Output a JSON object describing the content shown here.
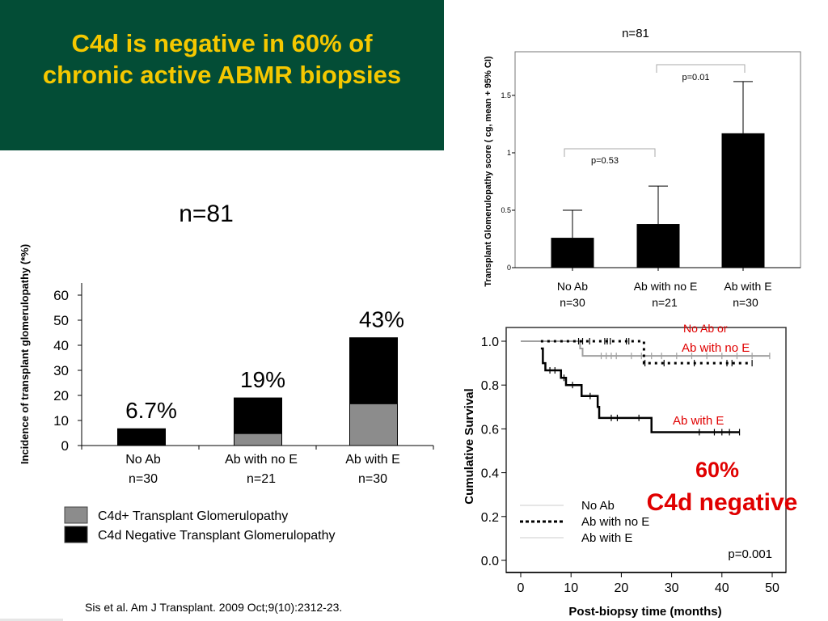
{
  "slide": {
    "title_line1": "C4d is negative in 60% of",
    "title_line2": "chronic active ABMR biopsies",
    "citation": "Sis et al. Am J Transplant. 2009 Oct;9(10):2312-23.",
    "colors": {
      "title_bg": "#034d36",
      "title_text": "#f5c800",
      "highlight_red": "#e00000"
    }
  },
  "chart_data": [
    {
      "id": "incidence",
      "type": "bar",
      "stacked": true,
      "title": "n=81",
      "xlabel": "",
      "ylabel": "Incidence of transplant glomerulopathy (*%)",
      "ylim": [
        0,
        60
      ],
      "yticks": [
        0,
        10,
        20,
        30,
        40,
        50,
        60
      ],
      "categories": [
        {
          "line1": "No Ab",
          "line2": "n=30"
        },
        {
          "line1": "Ab with no E",
          "line2": "n=21"
        },
        {
          "line1": "Ab with E",
          "line2": "n=30"
        }
      ],
      "series": [
        {
          "name": "C4d+ Transplant Glomerulopathy",
          "color": "#8c8c8c",
          "values": [
            0,
            4.8,
            16.7
          ]
        },
        {
          "name": "C4d Negative Transplant Glomerulopathy",
          "color": "#000000",
          "values": [
            6.7,
            14.2,
            26.3
          ]
        }
      ],
      "totals": [
        6.7,
        19,
        43
      ],
      "data_labels": [
        "6.7%",
        "19%",
        "43%"
      ],
      "legend_position": "bottom-left"
    },
    {
      "id": "tg-score",
      "type": "bar",
      "title": "n=81",
      "xlabel": "",
      "ylabel": "Transplant Glomerulopathy score ( cg, mean + 95% CI)",
      "ylim": [
        0,
        1.88
      ],
      "yticks": [
        0,
        0.5,
        1,
        1.5
      ],
      "ytick_labels": [
        "0",
        "0.5",
        "1",
        "1.5"
      ],
      "categories": [
        {
          "line1": "No Ab",
          "line2": "n=30"
        },
        {
          "line1": "Ab with no E",
          "line2": "n=21"
        },
        {
          "line1": "Ab with E",
          "line2": "n=30"
        }
      ],
      "values": [
        0.26,
        0.38,
        1.17
      ],
      "ci_upper": [
        0.5,
        0.71,
        1.62
      ],
      "comparisons": [
        {
          "from": 0,
          "to": 1,
          "label": "p=0.53"
        },
        {
          "from": 1,
          "to": 2,
          "label": "p=0.01"
        }
      ]
    },
    {
      "id": "survival",
      "type": "line",
      "subtype": "kaplan-meier",
      "xlabel": "Post-biopsy time (months)",
      "ylabel": "Cumulative Survival",
      "xlim": [
        -3,
        53
      ],
      "ylim": [
        -0.08,
        1.1
      ],
      "xticks": [
        0,
        10,
        20,
        30,
        40,
        50
      ],
      "yticks": [
        0.0,
        0.2,
        0.4,
        0.6,
        0.8,
        1.0
      ],
      "ytick_labels": [
        "0.0",
        "0.2",
        "0.4",
        "0.6",
        "0.8",
        "1.0"
      ],
      "series": [
        {
          "name": "No Ab",
          "color": "#a0a0a0",
          "style": "solid",
          "steps": [
            [
              0,
              1.0
            ],
            [
              11.8,
              1.0
            ],
            [
              11.8,
              0.967
            ],
            [
              12.3,
              0.967
            ],
            [
              12.3,
              0.933
            ],
            [
              49.5,
              0.933
            ]
          ],
          "censored": [
            [
              16,
              0.933
            ],
            [
              17,
              0.933
            ],
            [
              18,
              0.933
            ],
            [
              19,
              0.933
            ],
            [
              22,
              0.933
            ],
            [
              24,
              0.933
            ],
            [
              26,
              0.933
            ],
            [
              28,
              0.933
            ],
            [
              31,
              0.933
            ],
            [
              34,
              0.933
            ],
            [
              37,
              0.933
            ],
            [
              40,
              0.933
            ],
            [
              43,
              0.933
            ],
            [
              46,
              0.933
            ],
            [
              49.5,
              0.933
            ]
          ]
        },
        {
          "name": "Ab with no E",
          "color": "#000000",
          "style": "dotted",
          "steps": [
            [
              4,
              1.0
            ],
            [
              24.5,
              1.0
            ],
            [
              24.5,
              0.9
            ],
            [
              46,
              0.9
            ]
          ],
          "censored": [
            [
              11.5,
              1.0
            ],
            [
              12.3,
              1.0
            ],
            [
              13.7,
              1.0
            ],
            [
              16.7,
              1.0
            ],
            [
              17.2,
              1.0
            ],
            [
              17.8,
              1.0
            ],
            [
              21,
              1.0
            ],
            [
              21.5,
              1.0
            ],
            [
              24.7,
              0.9
            ],
            [
              28.5,
              0.9
            ],
            [
              34.5,
              0.9
            ],
            [
              41,
              0.9
            ],
            [
              42,
              0.9
            ],
            [
              46,
              0.9
            ]
          ]
        },
        {
          "name": "Ab with E",
          "color": "#000000",
          "style": "solid",
          "steps": [
            [
              4,
              0.967
            ],
            [
              4.4,
              0.967
            ],
            [
              4.4,
              0.9
            ],
            [
              4.9,
              0.9
            ],
            [
              4.9,
              0.867
            ],
            [
              8,
              0.867
            ],
            [
              8,
              0.833
            ],
            [
              9,
              0.833
            ],
            [
              9,
              0.8
            ],
            [
              12.1,
              0.8
            ],
            [
              12.1,
              0.75
            ],
            [
              15.3,
              0.75
            ],
            [
              15.3,
              0.7
            ],
            [
              15.6,
              0.7
            ],
            [
              15.6,
              0.65
            ],
            [
              26,
              0.65
            ],
            [
              26,
              0.585
            ],
            [
              43.5,
              0.585
            ]
          ],
          "censored": [
            [
              5.8,
              0.867
            ],
            [
              6.8,
              0.867
            ],
            [
              8.6,
              0.833
            ],
            [
              10.3,
              0.8
            ],
            [
              13.8,
              0.75
            ],
            [
              18,
              0.65
            ],
            [
              19.2,
              0.65
            ],
            [
              23.5,
              0.65
            ],
            [
              35.5,
              0.585
            ],
            [
              38.5,
              0.585
            ],
            [
              40,
              0.585
            ],
            [
              41.5,
              0.585
            ],
            [
              43.5,
              0.585
            ]
          ]
        }
      ],
      "legend": [
        "No Ab",
        "Ab with no E",
        "Ab with E"
      ],
      "legend_position": "bottom-left",
      "annotations": {
        "group_top": "No Ab or",
        "group_top_line2": "Ab with no E",
        "group_bottom": "Ab with E",
        "pvalue": "p=0.001",
        "highlight_line1": "60%",
        "highlight_line2": "C4d negative"
      }
    }
  ]
}
